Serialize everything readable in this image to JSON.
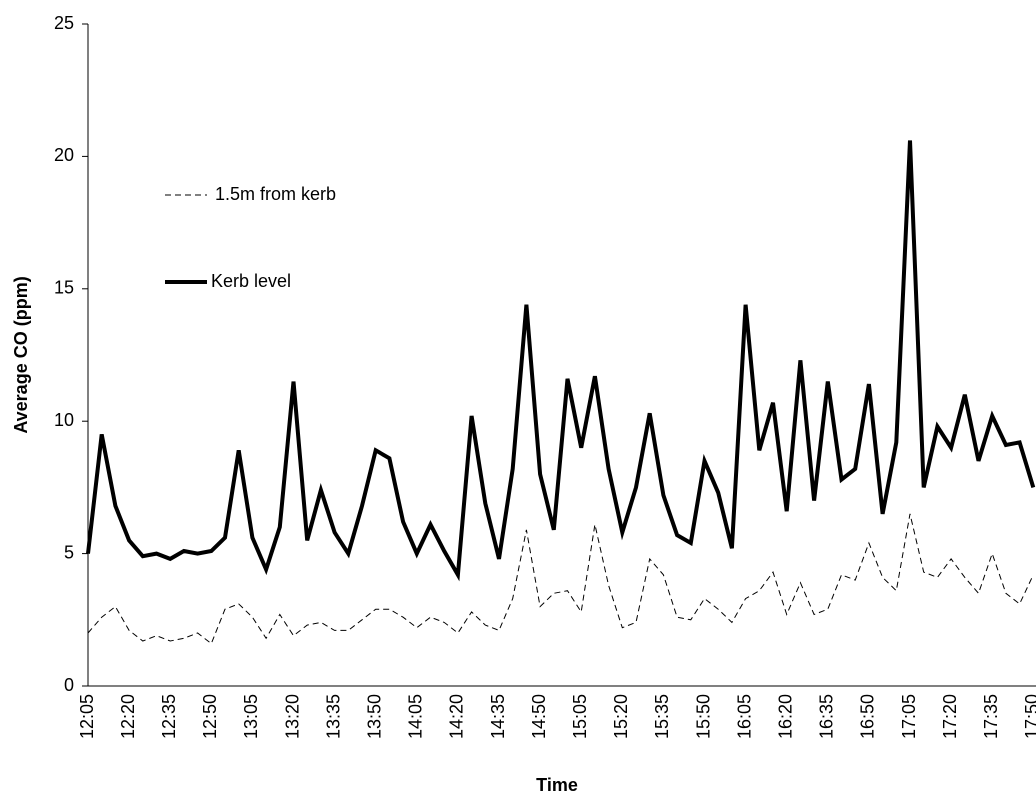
{
  "chart_data": {
    "type": "line",
    "x_label": "Time",
    "y_label": "Average CO (ppm)",
    "categories": [
      "12:05",
      null,
      null,
      "12:20",
      null,
      null,
      "12:35",
      null,
      null,
      "12:50",
      null,
      null,
      "13:05",
      null,
      null,
      "13:20",
      null,
      null,
      "13:35",
      null,
      null,
      "13:50",
      null,
      null,
      "14:05",
      null,
      null,
      "14:20",
      null,
      null,
      "14:35",
      null,
      null,
      "14:50",
      null,
      null,
      "15:05",
      null,
      null,
      "15:20",
      null,
      null,
      "15:35",
      null,
      null,
      "15:50",
      null,
      null,
      "16:05",
      null,
      null,
      "16:20",
      null,
      null,
      "16:35",
      null,
      null,
      "16:50",
      null,
      null,
      "17:05",
      null,
      null,
      "17:20",
      null,
      null,
      "17:35",
      null,
      null,
      "17:50"
    ],
    "series": [
      {
        "name": "1.5m from kerb",
        "color": "#000000",
        "dash": true,
        "values": [
          2.0,
          2.6,
          3.0,
          2.1,
          1.7,
          1.9,
          1.7,
          1.8,
          2.0,
          1.6,
          2.9,
          3.1,
          2.6,
          1.8,
          2.7,
          1.9,
          2.3,
          2.4,
          2.1,
          2.1,
          2.5,
          2.9,
          2.9,
          2.6,
          2.2,
          2.6,
          2.4,
          2.0,
          2.8,
          2.3,
          2.1,
          3.3,
          5.9,
          3.0,
          3.5,
          3.6,
          2.8,
          6.1,
          3.8,
          2.2,
          2.4,
          4.8,
          4.2,
          2.6,
          2.5,
          3.3,
          2.9,
          2.4,
          3.3,
          3.6,
          4.3,
          2.7,
          3.9,
          2.7,
          2.9,
          4.2,
          4.0,
          5.4,
          4.1,
          3.6,
          6.5,
          4.3,
          4.1,
          4.8,
          4.1,
          3.5,
          5.0,
          3.5,
          3.1,
          4.2
        ]
      },
      {
        "name": "Kerb level",
        "color": "#000000",
        "dash": false,
        "values": [
          5.0,
          9.5,
          6.8,
          5.5,
          4.9,
          5.0,
          4.8,
          5.1,
          5.0,
          5.1,
          5.6,
          8.9,
          5.6,
          4.4,
          6.0,
          11.5,
          5.5,
          7.4,
          5.8,
          5.0,
          6.8,
          8.9,
          8.6,
          6.2,
          5.0,
          6.1,
          5.1,
          4.2,
          10.2,
          6.9,
          4.8,
          8.2,
          14.4,
          8.0,
          5.9,
          11.6,
          9.0,
          11.7,
          8.2,
          5.8,
          7.5,
          10.3,
          7.2,
          5.7,
          5.4,
          8.5,
          7.3,
          5.2,
          14.4,
          8.9,
          10.7,
          6.6,
          12.3,
          7.0,
          11.5,
          7.8,
          8.2,
          11.4,
          6.5,
          9.2,
          20.6,
          7.5,
          9.8,
          9.0,
          11.0,
          8.5,
          10.2,
          9.1,
          9.2,
          7.5
        ]
      }
    ],
    "ylim": [
      0,
      25
    ],
    "yticks": [
      0,
      5,
      10,
      15,
      20,
      25
    ],
    "grid": false,
    "legend": "upper left"
  }
}
